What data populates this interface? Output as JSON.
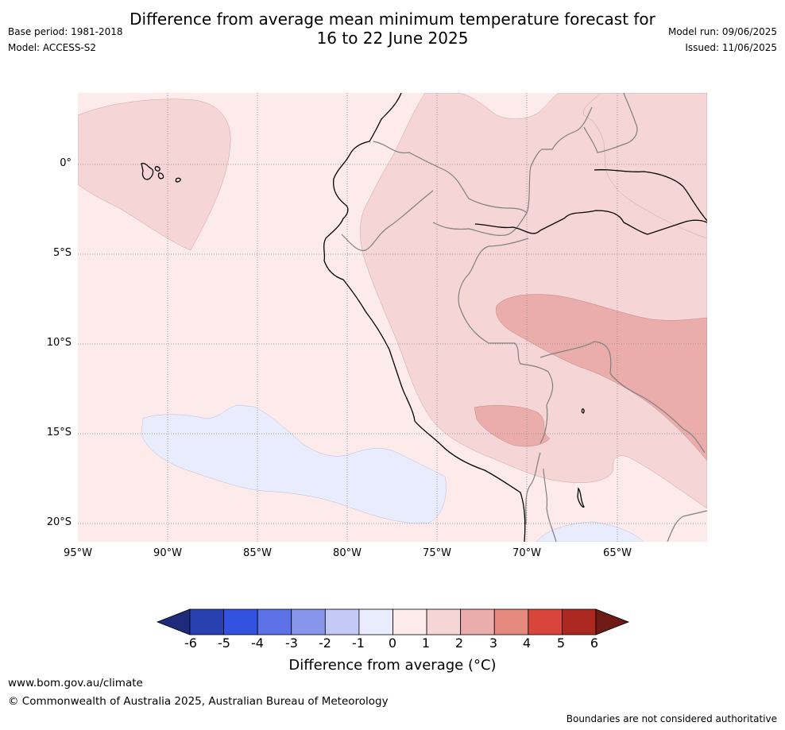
{
  "title_line1": "Difference from average mean minimum temperature forecast for",
  "title_line2": "16 to 22 June 2025",
  "meta_left": {
    "base_period": "Base period: 1981-2018",
    "model": "Model: ACCESS-S2"
  },
  "meta_right": {
    "model_run": "Model run: 09/06/2025",
    "issued": "Issued: 11/06/2025"
  },
  "lat_labels": [
    "0°",
    "5°S",
    "10°S",
    "15°S",
    "20°S"
  ],
  "lon_labels": [
    "95°W",
    "90°W",
    "85°W",
    "80°W",
    "75°W",
    "70°W",
    "65°W"
  ],
  "colorbar": {
    "ticks": [
      "-6",
      "-5",
      "-4",
      "-3",
      "-2",
      "-1",
      "0",
      "1",
      "2",
      "3",
      "4",
      "5",
      "6"
    ],
    "colors": [
      "#1e2a7a",
      "#283fb0",
      "#3452e0",
      "#5c72e6",
      "#8796eb",
      "#c3c9f5",
      "#e9ecfd",
      "#fcebea",
      "#f5d5d5",
      "#ebadab",
      "#e68a80",
      "#d9453b",
      "#aa2820",
      "#6e1a16"
    ],
    "title": "Difference from average (°C)"
  },
  "footer": {
    "url": "www.bom.gov.au/climate",
    "copyright": "© Commonwealth of Australia 2025, Australian Bureau of Meteorology",
    "disclaimer": "Boundaries are not considered authoritative"
  },
  "map_colors": {
    "c0_1": "#fcebea",
    "c1_2": "#f5d5d5",
    "c2_3": "#ebadab",
    "cm1_0": "#e9ecfd",
    "coast": "#000000",
    "border": "#808080",
    "grid": "#888888"
  }
}
